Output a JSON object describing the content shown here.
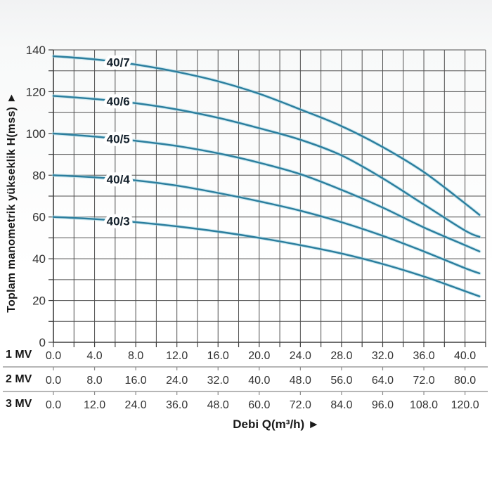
{
  "chart_data": {
    "type": "line",
    "title": "",
    "xlabel": "Debi Q(m³/h) ►",
    "ylabel": "Toplam manometrik yükseklik H(mss) ►",
    "grid": "on",
    "legend": "none",
    "y_axis": {
      "min": 0,
      "max": 140,
      "grid_step": 10,
      "label_step": 20,
      "unit": "mss",
      "tick_labels": [
        "0",
        "20",
        "40",
        "60",
        "80",
        "100",
        "120",
        "140"
      ]
    },
    "x_axis": {
      "grid_step": 2,
      "max": 42,
      "curve_end_q": 41.4,
      "rows": [
        {
          "label": "1 MV",
          "step": 4,
          "ticks": [
            "0.0",
            "4.0",
            "8.0",
            "12.0",
            "16.0",
            "20.0",
            "24.0",
            "28.0",
            "32.0",
            "36.0",
            "40.0"
          ]
        },
        {
          "label": "2 MV",
          "step": 8,
          "ticks": [
            "0.0",
            "8.0",
            "16.0",
            "24.0",
            "32.0",
            "40.0",
            "48.0",
            "56.0",
            "64.0",
            "72.0",
            "80.0"
          ]
        },
        {
          "label": "3 MV",
          "step": 12,
          "ticks": [
            "0.0",
            "12.0",
            "24.0",
            "36.0",
            "48.0",
            "60.0",
            "72.0",
            "84.0",
            "96.0",
            "108.0",
            "120.0"
          ]
        }
      ]
    },
    "series": [
      {
        "name": "40/7",
        "label_q": 6.3,
        "points": [
          [
            0,
            137
          ],
          [
            4,
            135.5
          ],
          [
            8,
            133
          ],
          [
            12,
            129.5
          ],
          [
            16,
            125
          ],
          [
            20,
            119
          ],
          [
            24,
            111.5
          ],
          [
            28,
            103.5
          ],
          [
            32,
            93.5
          ],
          [
            36,
            81.5
          ],
          [
            40,
            66.5
          ],
          [
            41.4,
            61
          ]
        ]
      },
      {
        "name": "40/6",
        "label_q": 6.3,
        "points": [
          [
            0,
            118
          ],
          [
            4,
            116.5
          ],
          [
            8,
            114.5
          ],
          [
            12,
            111.5
          ],
          [
            16,
            107.5
          ],
          [
            20,
            102.5
          ],
          [
            24,
            97
          ],
          [
            28,
            89.5
          ],
          [
            32,
            78.5
          ],
          [
            36,
            66
          ],
          [
            40,
            53.5
          ],
          [
            41.4,
            50.5
          ]
        ]
      },
      {
        "name": "40/5",
        "label_q": 6.3,
        "points": [
          [
            0,
            100
          ],
          [
            4,
            98.5
          ],
          [
            8,
            96.5
          ],
          [
            12,
            94
          ],
          [
            16,
            90.5
          ],
          [
            20,
            86
          ],
          [
            24,
            80.5
          ],
          [
            28,
            73
          ],
          [
            32,
            64.5
          ],
          [
            36,
            55
          ],
          [
            40,
            46.5
          ],
          [
            41.4,
            43.5
          ]
        ]
      },
      {
        "name": "40/4",
        "label_q": 6.3,
        "points": [
          [
            0,
            80
          ],
          [
            4,
            79
          ],
          [
            8,
            77.5
          ],
          [
            12,
            75
          ],
          [
            16,
            71.5
          ],
          [
            20,
            67.5
          ],
          [
            24,
            63
          ],
          [
            28,
            57.5
          ],
          [
            32,
            51
          ],
          [
            36,
            43.5
          ],
          [
            40,
            35.5
          ],
          [
            41.4,
            33
          ]
        ]
      },
      {
        "name": "40/3",
        "label_q": 6.3,
        "points": [
          [
            0,
            60
          ],
          [
            4,
            59
          ],
          [
            8,
            57.5
          ],
          [
            12,
            55.5
          ],
          [
            16,
            53
          ],
          [
            20,
            50
          ],
          [
            24,
            46.5
          ],
          [
            28,
            42.5
          ],
          [
            32,
            37.5
          ],
          [
            36,
            31.5
          ],
          [
            40,
            24.5
          ],
          [
            41.4,
            22
          ]
        ]
      }
    ],
    "colors": {
      "curve": "#2b7e9e",
      "curve_halo": "#a9d8e6",
      "grid": "#4f4f4f",
      "axis": "#3f3f3f",
      "tick_text": "#333333",
      "row_separator": "#8a8a8a",
      "curve_label_text": "#13202b",
      "title_text": "#1a1a1a"
    }
  }
}
